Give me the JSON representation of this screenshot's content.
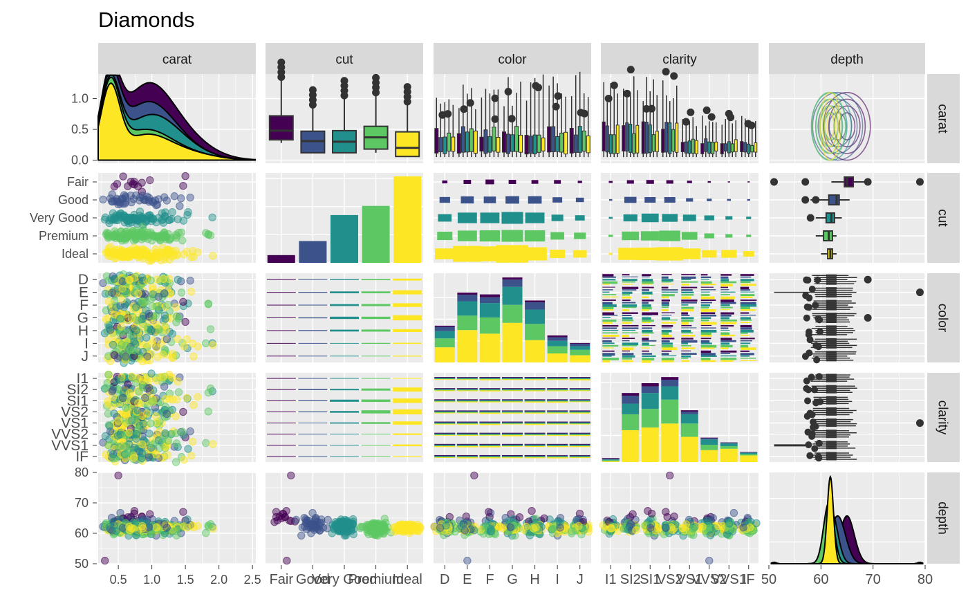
{
  "chart_data": {
    "type": "scatter-matrix",
    "title": "Diamonds",
    "variables": [
      "carat",
      "cut",
      "color",
      "clarity",
      "depth"
    ],
    "palette": {
      "Fair": "#440154",
      "Good": "#3b528b",
      "Very Good": "#21908c",
      "Premium": "#5dc863",
      "Ideal": "#fde725"
    },
    "color_scale": [
      "#440154",
      "#3b528b",
      "#21908c",
      "#5dc863",
      "#fde725"
    ],
    "colors": {
      "panel_background": "#ebebeb",
      "grid": "#ffffff",
      "strip_background": "#d9d9d9",
      "point_dark": "#333333"
    },
    "axes": {
      "carat": {
        "range": [
          0.2,
          2.55
        ],
        "ticks": [
          "0.5",
          "1.0",
          "1.5",
          "2.0",
          "2.5"
        ],
        "tick_values": [
          0.5,
          1.0,
          1.5,
          2.0,
          2.5
        ]
      },
      "carat_density": {
        "ticks": [
          "0.0",
          "0.5",
          "1.0"
        ],
        "tick_values": [
          0.0,
          0.5,
          1.0
        ],
        "range": [
          -0.05,
          1.4
        ]
      },
      "cut": {
        "levels": [
          "Fair",
          "Good",
          "Very Good",
          "Premium",
          "Ideal"
        ]
      },
      "color": {
        "levels": [
          "D",
          "E",
          "F",
          "G",
          "H",
          "I",
          "J"
        ]
      },
      "clarity": {
        "levels": [
          "I1",
          "SI2",
          "SI1",
          "VS2",
          "VS1",
          "VVS2",
          "VVS1",
          "IF"
        ]
      },
      "depth": {
        "range": [
          50,
          80
        ],
        "ticks": [
          "50",
          "60",
          "70",
          "80"
        ],
        "tick_values": [
          50,
          60,
          70,
          80
        ]
      }
    },
    "cut_counts": {
      "Fair": 55,
      "Good": 155,
      "Very Good": 340,
      "Premium": 405,
      "Ideal": 615
    },
    "color_counts": [
      {
        "level": "D",
        "values": [
          3,
          12,
          20,
          25,
          42
        ]
      },
      {
        "level": "E",
        "values": [
          6,
          18,
          40,
          40,
          90
        ]
      },
      {
        "level": "F",
        "values": [
          8,
          16,
          40,
          45,
          80
        ]
      },
      {
        "level": "G",
        "values": [
          6,
          20,
          50,
          50,
          110
        ]
      },
      {
        "level": "H",
        "values": [
          5,
          20,
          40,
          45,
          62
        ]
      },
      {
        "level": "I",
        "values": [
          5,
          10,
          15,
          20,
          25
        ]
      },
      {
        "level": "J",
        "values": [
          2,
          7,
          10,
          15,
          20
        ]
      }
    ],
    "clarity_counts": [
      {
        "level": "I1",
        "values": [
          3,
          2,
          3,
          4,
          3
        ]
      },
      {
        "level": "SI2",
        "values": [
          10,
          30,
          40,
          60,
          120
        ]
      },
      {
        "level": "SI1",
        "values": [
          12,
          25,
          60,
          70,
          130
        ]
      },
      {
        "level": "VS2",
        "values": [
          10,
          25,
          50,
          90,
          145
        ]
      },
      {
        "level": "VS1",
        "values": [
          5,
          10,
          35,
          50,
          95
        ]
      },
      {
        "level": "VVS2",
        "values": [
          2,
          5,
          20,
          20,
          45
        ]
      },
      {
        "level": "VVS1",
        "values": [
          1,
          3,
          10,
          10,
          50
        ]
      },
      {
        "level": "IF",
        "values": [
          1,
          2,
          5,
          5,
          25
        ]
      }
    ],
    "carat_by_cut_box": [
      {
        "cut": "Fair",
        "lower": 0.28,
        "q1": 0.33,
        "median": 0.48,
        "q3": 0.72,
        "upper": 1.3
      },
      {
        "cut": "Good",
        "lower": 0.12,
        "q1": 0.12,
        "median": 0.31,
        "q3": 0.47,
        "upper": 0.85
      },
      {
        "cut": "Very Good",
        "lower": 0.12,
        "q1": 0.12,
        "median": 0.3,
        "q3": 0.48,
        "upper": 1.0
      },
      {
        "cut": "Premium",
        "lower": 0.12,
        "q1": 0.18,
        "median": 0.37,
        "q3": 0.55,
        "upper": 1.05
      },
      {
        "cut": "Ideal",
        "lower": 0.06,
        "q1": 0.06,
        "median": 0.2,
        "q3": 0.46,
        "upper": 0.9
      }
    ],
    "depth_by_cut_box": [
      {
        "cut": "Fair",
        "lower": 62,
        "q1": 64.5,
        "median": 65,
        "q3": 66.2,
        "upper": 69
      },
      {
        "cut": "Good",
        "lower": 58,
        "q1": 61.5,
        "median": 63,
        "q3": 63.5,
        "upper": 65.5
      },
      {
        "cut": "Very Good",
        "lower": 59,
        "q1": 61,
        "median": 62,
        "q3": 62.6,
        "upper": 64
      },
      {
        "cut": "Premium",
        "lower": 59,
        "q1": 60.5,
        "median": 61.5,
        "q3": 62.2,
        "upper": 63
      },
      {
        "cut": "Ideal",
        "lower": 60,
        "q1": 61.3,
        "median": 61.8,
        "q3": 62.2,
        "upper": 63
      }
    ],
    "depth_density_peaks": [
      {
        "cut": "Fair",
        "mean": 65,
        "sd": 1.4
      },
      {
        "cut": "Good",
        "mean": 63.2,
        "sd": 1.5
      },
      {
        "cut": "Very Good",
        "mean": 62,
        "sd": 1.2
      },
      {
        "cut": "Premium",
        "mean": 61.5,
        "sd": 1.0
      },
      {
        "cut": "Ideal",
        "mean": 61.8,
        "sd": 0.6
      }
    ]
  }
}
